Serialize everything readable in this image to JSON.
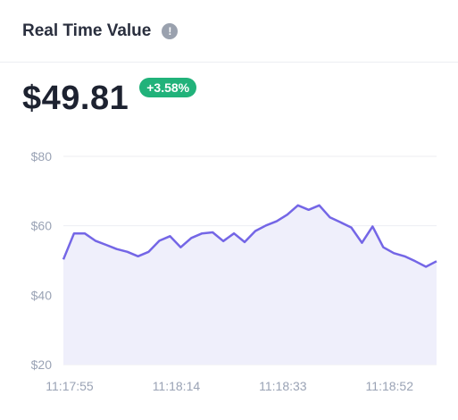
{
  "header": {
    "title": "Real Time Value",
    "info_icon": "info-icon"
  },
  "summary": {
    "value": "$49.81",
    "change": "+3.58%",
    "change_color": "#21b27a"
  },
  "colors": {
    "line": "#7466e6",
    "fill": "#efeffb",
    "grid": "#eceef2",
    "tick_text": "#9aa3b5"
  },
  "chart_data": {
    "type": "area",
    "title": "",
    "xlabel": "",
    "ylabel": "",
    "ylim": [
      20,
      80
    ],
    "y_ticks": [
      {
        "value": 80,
        "label": "$80"
      },
      {
        "value": 60,
        "label": "$60"
      },
      {
        "value": 40,
        "label": "$40"
      },
      {
        "value": 20,
        "label": "$20"
      }
    ],
    "x_ticks": [
      "11:17:55",
      "11:18:14",
      "11:18:33",
      "11:18:52"
    ],
    "x_tick_positions": [
      0,
      10,
      20,
      30
    ],
    "grid": true,
    "values": [
      50.3,
      57.8,
      57.8,
      55.7,
      54.5,
      53.3,
      52.5,
      51.2,
      52.5,
      55.7,
      57.0,
      53.8,
      56.5,
      57.8,
      58.1,
      55.6,
      57.8,
      55.3,
      58.5,
      60.1,
      61.3,
      63.2,
      65.9,
      64.6,
      65.9,
      62.4,
      61.0,
      59.5,
      55.1,
      59.8,
      53.8,
      52.1,
      51.2,
      49.8,
      48.2,
      49.8
    ]
  }
}
